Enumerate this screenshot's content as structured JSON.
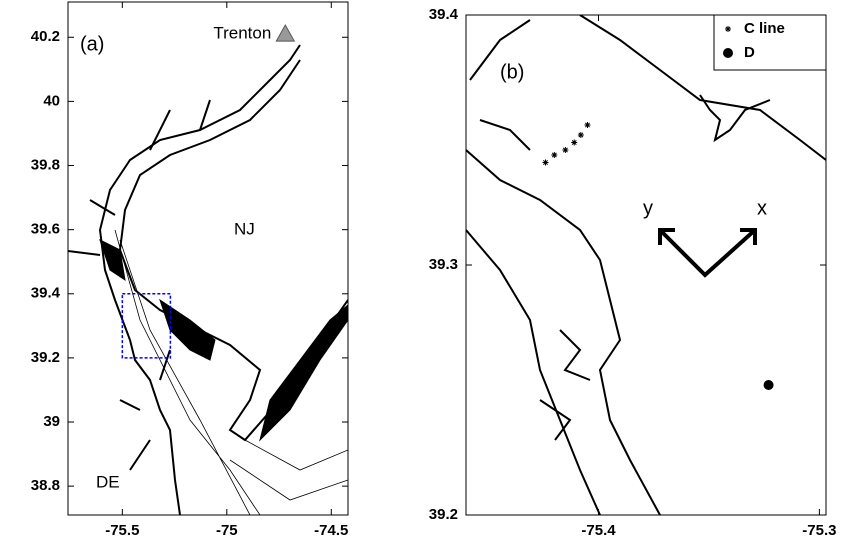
{
  "chart_data": [
    {
      "type": "map",
      "panel_label": "(a)",
      "xlim": [
        -75.76,
        -74.42
      ],
      "ylim": [
        38.71,
        40.31
      ],
      "xticks": [
        -75.5,
        -75,
        -74.5
      ],
      "yticks": [
        38.8,
        39,
        39.2,
        39.4,
        39.6,
        39.8,
        40,
        40.2
      ],
      "place_labels": [
        "NJ",
        "DE"
      ],
      "annotation": {
        "text": "Trenton",
        "x": -74.72,
        "y": 40.21,
        "color": "#999999"
      },
      "region": {
        "xlim": [
          -75.5,
          -75.27
        ],
        "ylim": [
          39.2,
          39.4
        ],
        "color": "#0000ff"
      }
    },
    {
      "type": "map",
      "panel_label": "(b)",
      "xlim": [
        -75.46,
        -75.297
      ],
      "ylim": [
        39.2,
        39.4
      ],
      "xticks": [
        -75.4,
        -75.3
      ],
      "yticks": [
        39.2,
        39.3,
        39.4
      ],
      "axis_labels": [
        "y",
        "x"
      ],
      "series": [
        {
          "name": "C line",
          "color": "#000000",
          "marker": "star",
          "x": [
            -75.424,
            -75.42,
            -75.415,
            -75.411,
            -75.408,
            -75.405
          ],
          "values": [
            39.341,
            39.344,
            39.346,
            39.349,
            39.352,
            39.356
          ]
        },
        {
          "name": "D",
          "color": "#000000",
          "marker": "dot",
          "x": [
            -75.323
          ],
          "values": [
            39.252
          ]
        }
      ]
    }
  ]
}
